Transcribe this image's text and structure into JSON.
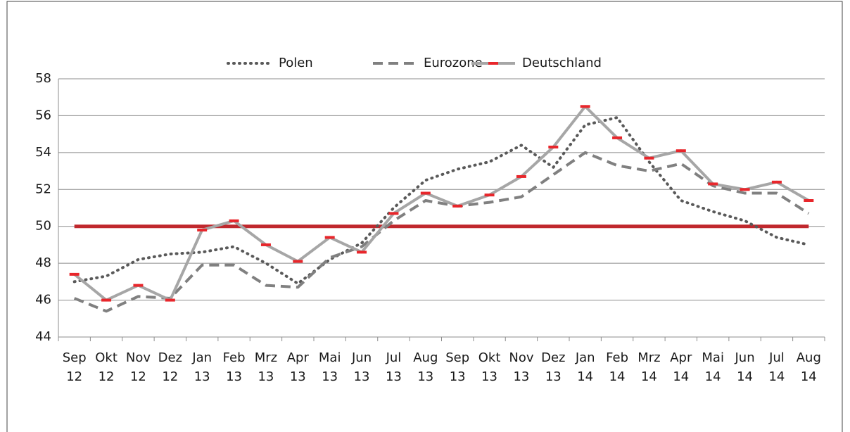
{
  "chart_data": {
    "type": "line",
    "categories": [
      [
        "Sep",
        "12"
      ],
      [
        "Okt",
        "12"
      ],
      [
        "Nov",
        "12"
      ],
      [
        "Dez",
        "12"
      ],
      [
        "Jan",
        "13"
      ],
      [
        "Feb",
        "13"
      ],
      [
        "Mrz",
        "13"
      ],
      [
        "Apr",
        "13"
      ],
      [
        "Mai",
        "13"
      ],
      [
        "Jun",
        "13"
      ],
      [
        "Jul",
        "13"
      ],
      [
        "Aug",
        "13"
      ],
      [
        "Sep",
        "13"
      ],
      [
        "Okt",
        "13"
      ],
      [
        "Nov",
        "13"
      ],
      [
        "Dez",
        "13"
      ],
      [
        "Jan",
        "14"
      ],
      [
        "Feb",
        "14"
      ],
      [
        "Mrz",
        "14"
      ],
      [
        "Apr",
        "14"
      ],
      [
        "Mai",
        "14"
      ],
      [
        "Jun",
        "14"
      ],
      [
        "Jul",
        "14"
      ],
      [
        "Aug",
        "14"
      ]
    ],
    "series": [
      {
        "name": "Polen",
        "color": "#595959",
        "style": "dotted",
        "values": [
          47.0,
          47.3,
          48.2,
          48.5,
          48.6,
          48.9,
          48.0,
          46.9,
          48.2,
          49.1,
          51.0,
          52.5,
          53.1,
          53.5,
          54.4,
          53.2,
          55.5,
          55.9,
          53.5,
          51.4,
          50.8,
          50.3,
          49.4,
          49.0
        ]
      },
      {
        "name": "Eurozone",
        "color": "#808080",
        "style": "dashed",
        "values": [
          46.1,
          45.4,
          46.2,
          46.1,
          47.9,
          47.9,
          46.8,
          46.7,
          48.3,
          48.9,
          50.3,
          51.4,
          51.1,
          51.3,
          51.6,
          52.8,
          54.0,
          53.3,
          53.0,
          53.4,
          52.2,
          51.8,
          51.8,
          50.7
        ]
      },
      {
        "name": "Deutschland",
        "color": "#a6a6a6",
        "style": "solid",
        "marker_color": "#e8262b",
        "values": [
          47.4,
          46.0,
          46.8,
          46.0,
          49.8,
          50.3,
          49.0,
          48.1,
          49.4,
          48.6,
          50.7,
          51.8,
          51.1,
          51.7,
          52.7,
          54.3,
          56.5,
          54.8,
          53.7,
          54.1,
          52.3,
          52.0,
          52.4,
          51.4
        ]
      }
    ],
    "reference_line": {
      "value": 50,
      "color": "#c0282d"
    },
    "ylim": [
      44,
      58
    ],
    "yticks": [
      44,
      46,
      48,
      50,
      52,
      54,
      56,
      58
    ],
    "grid": true,
    "legend": "top"
  }
}
